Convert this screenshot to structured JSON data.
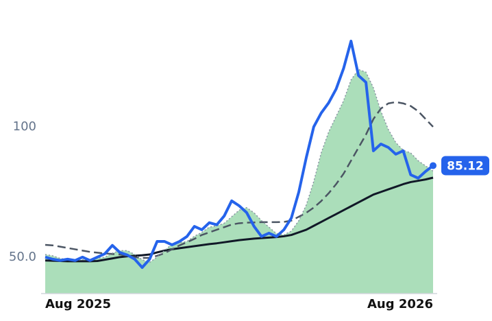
{
  "chart_data": {
    "type": "line",
    "x": [
      0,
      1,
      2,
      3,
      4,
      5,
      6,
      7,
      8,
      9,
      10,
      11,
      12,
      13,
      14,
      15,
      16,
      17,
      18,
      19,
      20,
      21,
      22,
      23,
      24,
      25,
      26,
      27,
      28,
      29,
      30,
      31,
      32,
      33,
      34,
      35,
      36,
      37,
      38,
      39,
      40,
      41,
      42,
      43,
      44,
      45,
      46,
      47,
      48,
      49,
      50,
      51,
      52
    ],
    "xlim": [
      0,
      52
    ],
    "xticks": [
      {
        "value": 0,
        "label": "Aug 2025"
      },
      {
        "value": 52,
        "label": "Aug 2026"
      }
    ],
    "ylim": [
      36,
      140
    ],
    "yticks": [
      {
        "value": 50,
        "label": "50.0"
      },
      100
    ],
    "fill_color": "#8fd3a3",
    "series": [
      {
        "color": "#2563eb",
        "style": "solid",
        "width": 4,
        "values": [
          50,
          49.2,
          48.7,
          49.2,
          48.7,
          50,
          48.7,
          50,
          51.3,
          54.5,
          51.8,
          50.8,
          49.2,
          46,
          49.2,
          56,
          56,
          54.7,
          56,
          57.9,
          61.8,
          60.5,
          63.2,
          62.4,
          65.8,
          71.6,
          69.7,
          67.1,
          61.8,
          57.9,
          59.2,
          57.9,
          60.5,
          65,
          75,
          88.2,
          100,
          105.3,
          109.2,
          114.5,
          122.4,
          132.9,
          119.7,
          117.1,
          90.8,
          93.4,
          92.1,
          89.5,
          90.8,
          81.6,
          80.3,
          82.9,
          85.12
        ]
      },
      {
        "color": "#8a93a3",
        "style": "dotted",
        "width": 1.5,
        "fill": true,
        "values": [
          51,
          50.5,
          49.5,
          49,
          48.8,
          49,
          49,
          49.5,
          50,
          51.5,
          52.5,
          52.5,
          51,
          49,
          48,
          50,
          52.5,
          55,
          55.5,
          56,
          58,
          59.5,
          61.5,
          62,
          63,
          65.5,
          68,
          69,
          67,
          64,
          61.5,
          59,
          58.5,
          60,
          64,
          70,
          79,
          90,
          98,
          104,
          110,
          118,
          122,
          121,
          115,
          106,
          99,
          94,
          91,
          90,
          87,
          85,
          83
        ]
      },
      {
        "color": "#4b5563",
        "style": "dashed",
        "width": 2.5,
        "values": [
          54.7,
          54.5,
          54,
          53.5,
          53,
          52.5,
          52,
          51.7,
          51.4,
          51.2,
          51,
          50.5,
          50,
          49.7,
          49.7,
          50.5,
          51.5,
          53,
          54.5,
          55.7,
          57,
          58.5,
          59.5,
          60.5,
          61.5,
          62.5,
          63,
          63.2,
          63.3,
          63.4,
          63.4,
          63.4,
          63.5,
          64,
          65.5,
          67,
          69,
          71.5,
          74.5,
          78,
          82,
          87,
          92,
          97,
          103,
          107,
          109,
          109.5,
          109,
          108,
          106,
          103,
          100
        ]
      },
      {
        "color": "#111827",
        "style": "solid",
        "width": 3,
        "values": [
          48.7,
          48.6,
          48.5,
          48.4,
          48.4,
          48.4,
          48.4,
          48.5,
          49,
          49.5,
          50,
          50.3,
          50.5,
          50.7,
          51,
          51.8,
          52.5,
          53,
          53.4,
          53.8,
          54.2,
          54.6,
          55,
          55.3,
          55.7,
          56.1,
          56.5,
          56.8,
          57.1,
          57.3,
          57.5,
          57.7,
          58,
          58.5,
          59.5,
          60.5,
          62,
          63.5,
          65,
          66.5,
          68,
          69.5,
          71,
          72.5,
          74,
          75,
          76,
          77,
          78,
          78.8,
          79.3,
          79.8,
          80.5
        ]
      }
    ]
  }
}
